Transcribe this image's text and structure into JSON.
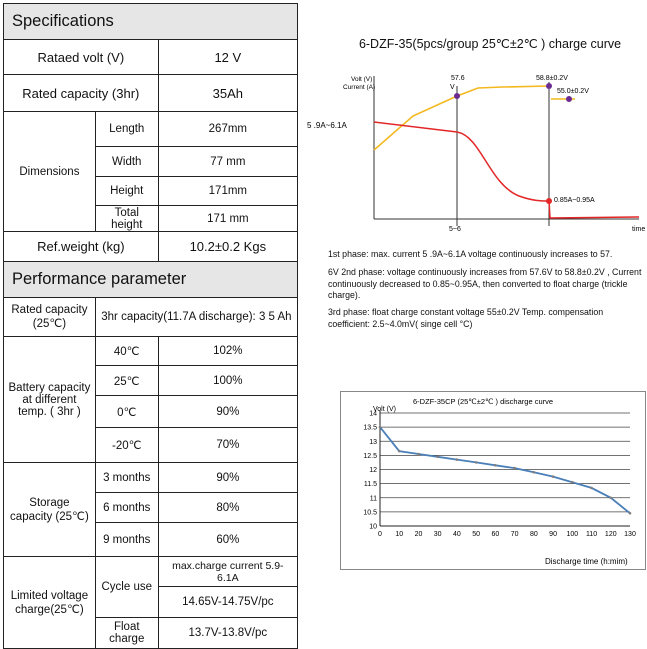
{
  "specifications": {
    "header": "Specifications",
    "rated_volt_label": "Rataed volt (V)",
    "rated_volt_value": "12 V",
    "rated_capacity_label": "Rated capacity (3hr)",
    "rated_capacity_value": "35Ah",
    "dimensions_label": "Dimensions",
    "dimensions": [
      {
        "label": "Length",
        "value": "267mm"
      },
      {
        "label": "Width",
        "value": "77 mm"
      },
      {
        "label": "Height",
        "value": "171mm"
      },
      {
        "label": "Total height",
        "value": "171 mm"
      }
    ],
    "weight_label": "Ref.weight (kg)",
    "weight_value": "10.2±0.2 Kgs"
  },
  "performance": {
    "header": "Performance parameter",
    "rated_capacity_label": "Rated capacity (25℃)",
    "rated_capacity_value": "3hr capacity(11.7A discharge): 3 5 Ah",
    "battery_capacity_label": "Battery capacity at different temp. ( 3hr )",
    "temps": [
      {
        "temp": "40℃",
        "value": "102%"
      },
      {
        "temp": "25℃",
        "value": "100%"
      },
      {
        "temp": "0℃",
        "value": "90%"
      },
      {
        "temp": "-20℃",
        "value": "70%"
      }
    ],
    "storage_label": "Storage capacity (25℃)",
    "storage": [
      {
        "period": "3 months",
        "value": "90%"
      },
      {
        "period": "6 months",
        "value": "80%"
      },
      {
        "period": "9 months",
        "value": "60%"
      }
    ],
    "limited_voltage_label": "Limited voltage charge(25℃)",
    "cycle_use_label": "Cycle use",
    "cycle_use_values": [
      "max.charge current 5.9-6.1A",
      "14.65V-14.75V/pc"
    ],
    "float_charge_label": "Float charge",
    "float_charge_value": "13.7V-13.8V/pc"
  },
  "charge_curve": {
    "title": "6-DZF-35(5pcs/group 25℃±2℃ ) charge curve",
    "axis_label_volt": "Volt (V)",
    "axis_label_current": "Current (A)",
    "current_label": "5 .9A~6.1A",
    "label_576_a": "57.6",
    "label_576_b": "V",
    "label_588": "58.8±0.2V",
    "label_550": "55.0±0.2V",
    "label_085": "0.85A~0.95A",
    "label_56": "5~6",
    "label_time": "time",
    "colors": {
      "voltage": "#f2b81d",
      "current": "#e32626"
    }
  },
  "phases": {
    "phase1": "1st phase: max. current 5 .9A~6.1A voltage continuously increases to 57.",
    "phase2": "6V 2nd phase: voltage continuously increases from 57.6V to 58.8±0.2V , Current continuously decreased to 0.85~0.95A, then converted to float charge (trickle charge).",
    "phase3": "3rd phase: float charge constant voltage 55±0.2V  Temp. compensation coefficient: 2.5~4.0mV( singe cell °C)"
  },
  "chart_data": {
    "type": "line",
    "title": "6-DZF-35CP (25℃±2℃ ) discharge curve",
    "ylabel": "Volt (V)",
    "xlabel": "Discharge time (h:mim)",
    "x": [
      0,
      10,
      20,
      30,
      40,
      50,
      60,
      70,
      80,
      90,
      100,
      110,
      120,
      130
    ],
    "y": [
      13.5,
      12.65,
      12.55,
      12.45,
      12.35,
      12.25,
      12.15,
      12.05,
      11.9,
      11.75,
      11.55,
      11.35,
      11.0,
      10.45
    ],
    "xticks": [
      "0",
      "10",
      "20",
      "30",
      "40",
      "50",
      "60",
      "70",
      "80",
      "90",
      "100",
      "110",
      "120",
      "130"
    ],
    "yticks": [
      "10",
      "10.5",
      "11",
      "11.5",
      "12",
      "12.5",
      "13",
      "13.5",
      "14"
    ],
    "xlim": [
      0,
      130
    ],
    "ylim": [
      10,
      14
    ],
    "grid": true,
    "line_color": "#4a7fb8"
  }
}
